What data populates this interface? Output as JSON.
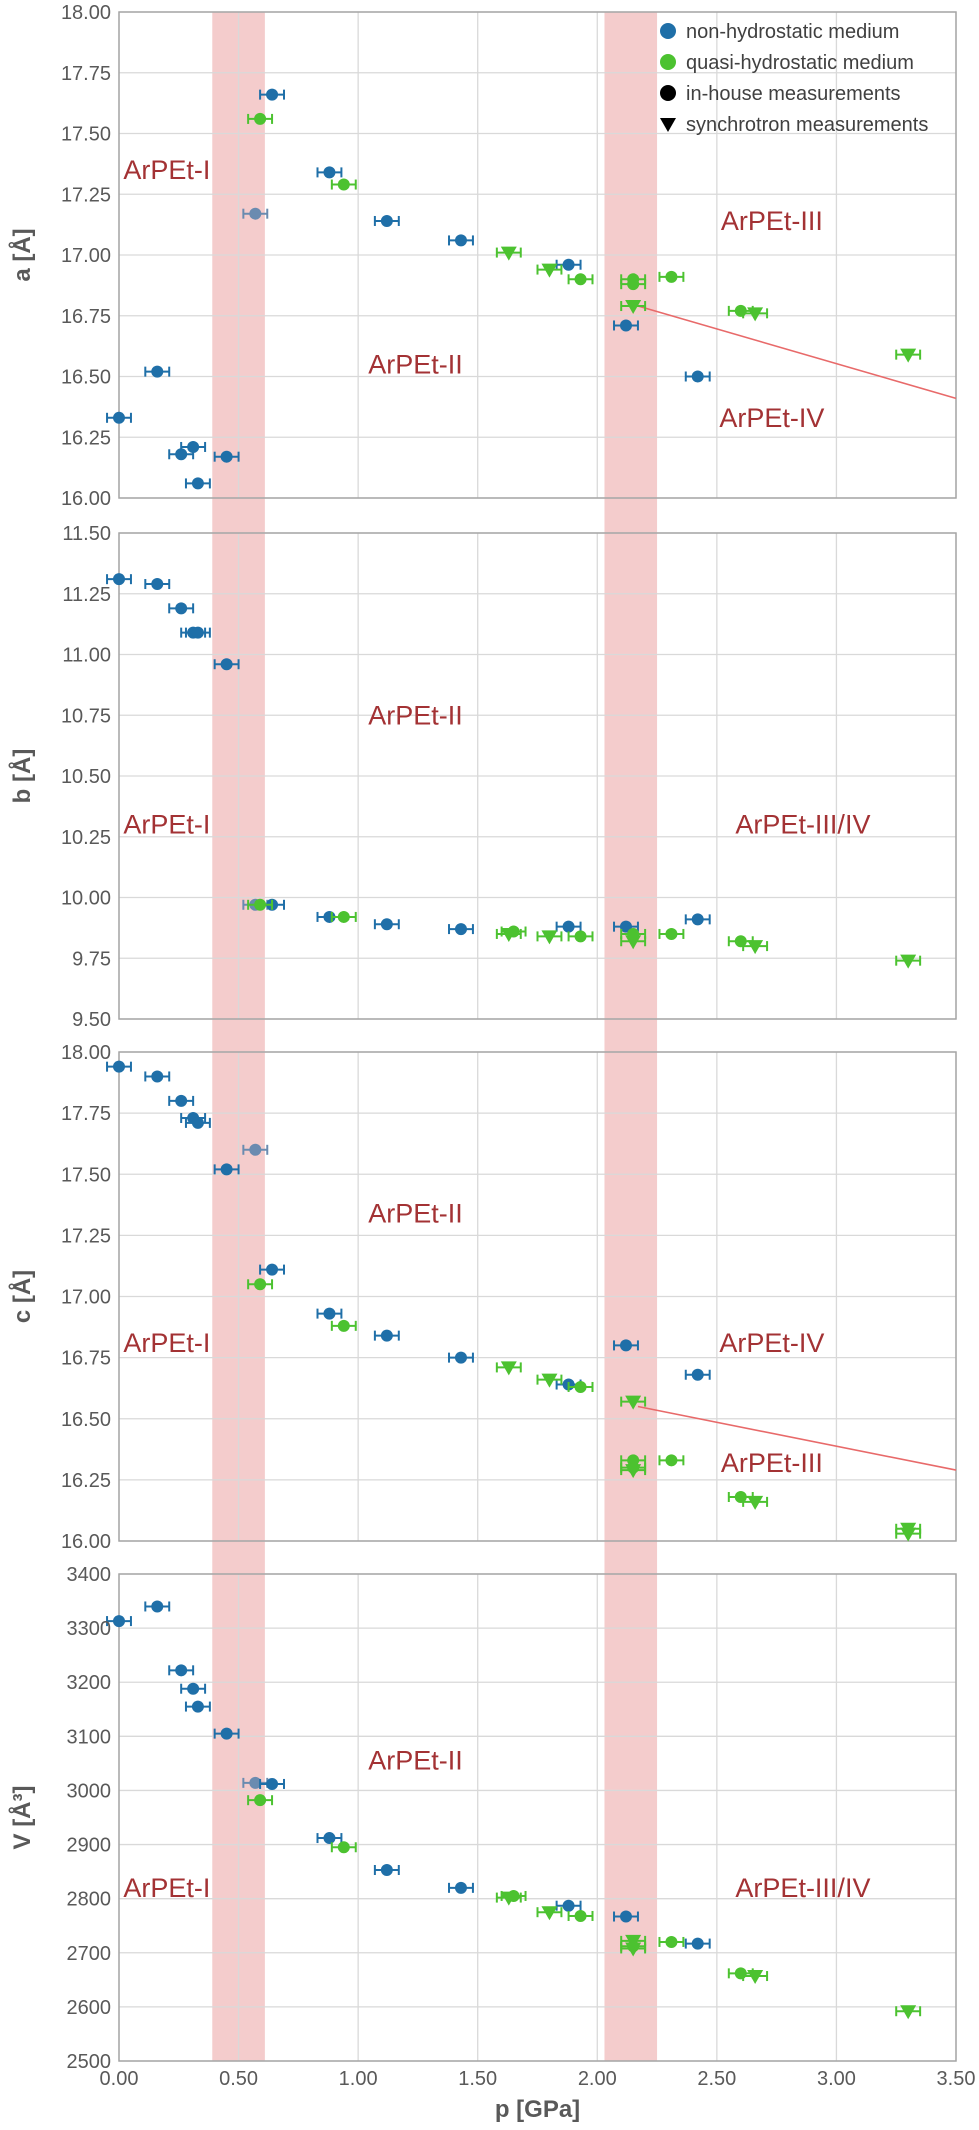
{
  "chart_data": {
    "type": "scatter",
    "shared_x": {
      "label": "p [GPa]",
      "range": [
        0,
        3.5
      ],
      "ticks": [
        "0.00",
        "0.50",
        "1.00",
        "1.50",
        "2.00",
        "2.50",
        "3.00",
        "3.50"
      ]
    },
    "legend": {
      "placement": "top-right",
      "entries": [
        {
          "label": "non-hydrostatic medium",
          "color": "#1f6fa8",
          "marker": "circle"
        },
        {
          "label": "quasi-hydrostatic medium",
          "color": "#4cc230",
          "marker": "circle"
        },
        {
          "label": "in-house measurements",
          "color": "#000000",
          "marker": "circle"
        },
        {
          "label": "synchrotron measurements",
          "color": "#000000",
          "marker": "triangle"
        }
      ]
    },
    "colors": {
      "non_hydrostatic": "#1f6fa8",
      "quasi_hydrostatic": "#4cc230",
      "overlap": "#6a8bb0",
      "band": "#f4cccc",
      "phase_text": "#a33234",
      "boundary_line": "#e86a6a"
    },
    "transition_bands": [
      [
        0.39,
        0.61
      ],
      [
        2.03,
        2.25
      ]
    ],
    "grid": true,
    "panels": [
      {
        "ylabel": "a [Å]",
        "ylim": [
          16.0,
          18.0
        ],
        "yticks": [
          "18.00",
          "17.75",
          "17.50",
          "17.25",
          "17.00",
          "16.75",
          "16.50",
          "16.25",
          "16.00"
        ],
        "phase_labels": [
          {
            "text": "ArPEt-I",
            "x": 0.2,
            "y": 17.35
          },
          {
            "text": "ArPEt-II",
            "x": 1.24,
            "y": 16.55
          },
          {
            "text": "ArPEt-III",
            "x": 2.73,
            "y": 17.14
          },
          {
            "text": "ArPEt-IV",
            "x": 2.73,
            "y": 16.33
          }
        ],
        "boundary_line": [
          [
            2.17,
            16.79
          ],
          [
            3.5,
            16.41
          ]
        ],
        "series": [
          {
            "medium": "non-hydrostatic",
            "method": "in-house",
            "points": [
              [
                0.0,
                16.33
              ],
              [
                0.16,
                16.52
              ],
              [
                0.26,
                16.18
              ],
              [
                0.31,
                16.21
              ],
              [
                0.33,
                16.06
              ],
              [
                0.45,
                16.17
              ],
              [
                0.57,
                17.17
              ],
              [
                0.64,
                17.66
              ],
              [
                0.88,
                17.34
              ],
              [
                1.12,
                17.14
              ],
              [
                1.43,
                17.06
              ],
              [
                1.88,
                16.96
              ],
              [
                2.12,
                16.71
              ],
              [
                2.42,
                16.5
              ]
            ]
          },
          {
            "medium": "quasi-hydrostatic",
            "method": "in-house",
            "points": [
              [
                0.59,
                17.56
              ],
              [
                0.94,
                17.29
              ],
              [
                1.93,
                16.9
              ],
              [
                2.15,
                16.9
              ],
              [
                2.15,
                16.88
              ],
              [
                2.31,
                16.91
              ],
              [
                2.6,
                16.77
              ]
            ]
          },
          {
            "medium": "quasi-hydrostatic",
            "method": "synchrotron",
            "points": [
              [
                1.63,
                17.01
              ],
              [
                1.8,
                16.94
              ],
              [
                2.15,
                16.79
              ],
              [
                2.66,
                16.76
              ],
              [
                3.3,
                16.59
              ]
            ]
          }
        ]
      },
      {
        "ylabel": "b [Å]",
        "ylim": [
          9.5,
          11.5
        ],
        "yticks": [
          "11.50",
          "11.25",
          "11.00",
          "10.75",
          "10.50",
          "10.25",
          "10.00",
          "9.75",
          "9.50"
        ],
        "phase_labels": [
          {
            "text": "ArPEt-I",
            "x": 0.2,
            "y": 10.3
          },
          {
            "text": "ArPEt-II",
            "x": 1.24,
            "y": 10.75
          },
          {
            "text": "ArPEt-III/IV",
            "x": 2.86,
            "y": 10.3
          }
        ],
        "series": [
          {
            "medium": "non-hydrostatic",
            "method": "in-house",
            "points": [
              [
                0.0,
                11.31
              ],
              [
                0.16,
                11.29
              ],
              [
                0.26,
                11.19
              ],
              [
                0.31,
                11.09
              ],
              [
                0.33,
                11.09
              ],
              [
                0.45,
                10.96
              ],
              [
                0.57,
                9.97
              ],
              [
                0.64,
                9.97
              ],
              [
                0.88,
                9.92
              ],
              [
                1.12,
                9.89
              ],
              [
                1.43,
                9.87
              ],
              [
                1.88,
                9.88
              ],
              [
                2.12,
                9.88
              ],
              [
                2.42,
                9.91
              ]
            ]
          },
          {
            "medium": "quasi-hydrostatic",
            "method": "in-house",
            "points": [
              [
                0.59,
                9.97
              ],
              [
                0.94,
                9.92
              ],
              [
                1.65,
                9.86
              ],
              [
                1.93,
                9.84
              ],
              [
                2.15,
                9.85
              ],
              [
                2.31,
                9.85
              ],
              [
                2.6,
                9.82
              ]
            ]
          },
          {
            "medium": "quasi-hydrostatic",
            "method": "synchrotron",
            "points": [
              [
                1.63,
                9.85
              ],
              [
                1.8,
                9.84
              ],
              [
                2.15,
                9.82
              ],
              [
                2.66,
                9.8
              ],
              [
                3.3,
                9.74
              ]
            ]
          }
        ]
      },
      {
        "ylabel": "c [Å]",
        "ylim": [
          16.0,
          18.0
        ],
        "yticks": [
          "18.00",
          "17.75",
          "17.50",
          "17.25",
          "17.00",
          "16.75",
          "16.50",
          "16.25",
          "16.00"
        ],
        "phase_labels": [
          {
            "text": "ArPEt-I",
            "x": 0.2,
            "y": 16.81
          },
          {
            "text": "ArPEt-II",
            "x": 1.24,
            "y": 17.34
          },
          {
            "text": "ArPEt-IV",
            "x": 2.73,
            "y": 16.81
          },
          {
            "text": "ArPEt-III",
            "x": 2.73,
            "y": 16.32
          }
        ],
        "boundary_line": [
          [
            2.17,
            16.55
          ],
          [
            3.5,
            16.29
          ]
        ],
        "series": [
          {
            "medium": "non-hydrostatic",
            "method": "in-house",
            "points": [
              [
                0.0,
                17.94
              ],
              [
                0.16,
                17.9
              ],
              [
                0.26,
                17.8
              ],
              [
                0.31,
                17.73
              ],
              [
                0.33,
                17.71
              ],
              [
                0.45,
                17.52
              ],
              [
                0.57,
                17.6
              ],
              [
                0.64,
                17.11
              ],
              [
                0.88,
                16.93
              ],
              [
                1.12,
                16.84
              ],
              [
                1.43,
                16.75
              ],
              [
                1.88,
                16.64
              ],
              [
                2.12,
                16.8
              ],
              [
                2.42,
                16.68
              ]
            ]
          },
          {
            "medium": "quasi-hydrostatic",
            "method": "in-house",
            "points": [
              [
                0.59,
                17.05
              ],
              [
                0.94,
                16.88
              ],
              [
                1.93,
                16.63
              ],
              [
                2.15,
                16.33
              ],
              [
                2.15,
                16.3
              ],
              [
                2.31,
                16.33
              ],
              [
                2.6,
                16.18
              ]
            ]
          },
          {
            "medium": "quasi-hydrostatic",
            "method": "synchrotron",
            "points": [
              [
                1.63,
                16.71
              ],
              [
                1.8,
                16.66
              ],
              [
                2.15,
                16.57
              ],
              [
                2.15,
                16.29
              ],
              [
                2.66,
                16.16
              ],
              [
                3.3,
                16.05
              ],
              [
                3.3,
                16.03
              ]
            ]
          }
        ]
      },
      {
        "ylabel": "V [Å³]",
        "ylim": [
          2500,
          3400
        ],
        "yticks": [
          "3400",
          "3300",
          "3200",
          "3100",
          "3000",
          "2900",
          "2800",
          "2700",
          "2600",
          "2500"
        ],
        "phase_labels": [
          {
            "text": "ArPEt-I",
            "x": 0.2,
            "y": 2820
          },
          {
            "text": "ArPEt-II",
            "x": 1.24,
            "y": 3055
          },
          {
            "text": "ArPEt-III/IV",
            "x": 2.86,
            "y": 2820
          }
        ],
        "series": [
          {
            "medium": "non-hydrostatic",
            "method": "in-house",
            "points": [
              [
                0.0,
                3313
              ],
              [
                0.16,
                3340
              ],
              [
                0.26,
                3222
              ],
              [
                0.31,
                3188
              ],
              [
                0.33,
                3155
              ],
              [
                0.45,
                3105
              ],
              [
                0.57,
                3014
              ],
              [
                0.64,
                3012
              ],
              [
                0.88,
                2912
              ],
              [
                1.12,
                2853
              ],
              [
                1.43,
                2820
              ],
              [
                1.88,
                2787
              ],
              [
                2.12,
                2767
              ],
              [
                2.42,
                2717
              ]
            ]
          },
          {
            "medium": "quasi-hydrostatic",
            "method": "in-house",
            "points": [
              [
                0.59,
                2982
              ],
              [
                0.94,
                2895
              ],
              [
                1.65,
                2805
              ],
              [
                1.93,
                2768
              ],
              [
                2.15,
                2712
              ],
              [
                2.31,
                2720
              ],
              [
                2.6,
                2662
              ]
            ]
          },
          {
            "medium": "quasi-hydrostatic",
            "method": "synchrotron",
            "points": [
              [
                1.63,
                2802
              ],
              [
                1.8,
                2775
              ],
              [
                2.15,
                2722
              ],
              [
                2.15,
                2708
              ],
              [
                2.66,
                2657
              ],
              [
                3.3,
                2592
              ]
            ]
          }
        ]
      }
    ]
  }
}
